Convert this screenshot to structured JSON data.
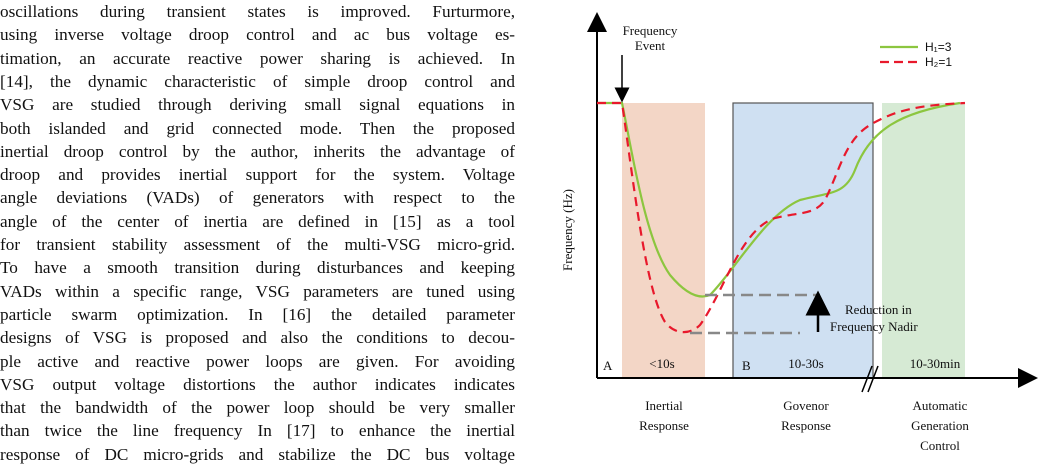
{
  "text": {
    "lines": [
      "oscillations during transient states is improved. Furturmore,",
      "using inverse voltage droop control and ac bus voltage es-",
      "timation, an accurate reactive power sharing is achieved. In",
      "[14], the dynamic characteristic of simple droop control and",
      "VSG are studied through deriving small signal equations in",
      "both islanded and grid connected mode. Then the proposed",
      "inertial droop control by the author, inherits the advantage of",
      "droop and provides inertial support for the system. Voltage",
      "angle deviations (VADs) of generators with respect to the",
      "angle of the center of inertia are defined in [15] as a tool",
      "for transient stability assessment of the multi-VSG micro-grid.",
      "To have a smooth transition during disturbances and keeping",
      "VADs within a specific range, VSG parameters are tuned using",
      "particle swarm optimization. In [16] the detailed parameter",
      "designs of VSG is proposed and also the conditions to decou-",
      "ple active and reactive power loops are given. For avoiding",
      "VSG output voltage distortions the author indicates indicates",
      "that the bandwidth of the power loop should be very smaller",
      "than twice the line frequency In [17] to enhance the inertial",
      "response of DC micro-grids and stabilize the DC bus voltage"
    ]
  },
  "figure": {
    "y_axis_label": "Frequency (Hz)",
    "event": [
      "Frequency",
      "Event"
    ],
    "legend": [
      "H₁=3",
      "H₂=1"
    ],
    "nadir": [
      "Reduction in",
      "Frequency Nadir"
    ],
    "regions": {
      "a": "A",
      "a_time": "<10s",
      "b": "B",
      "b_time": "10-30s",
      "c_time": "10-30min"
    },
    "phases": {
      "inertial": [
        "Inertial",
        "Response"
      ],
      "governor": [
        "Govenor",
        "Response"
      ],
      "agc": [
        "Automatic",
        "Generation",
        "Control"
      ]
    }
  }
}
